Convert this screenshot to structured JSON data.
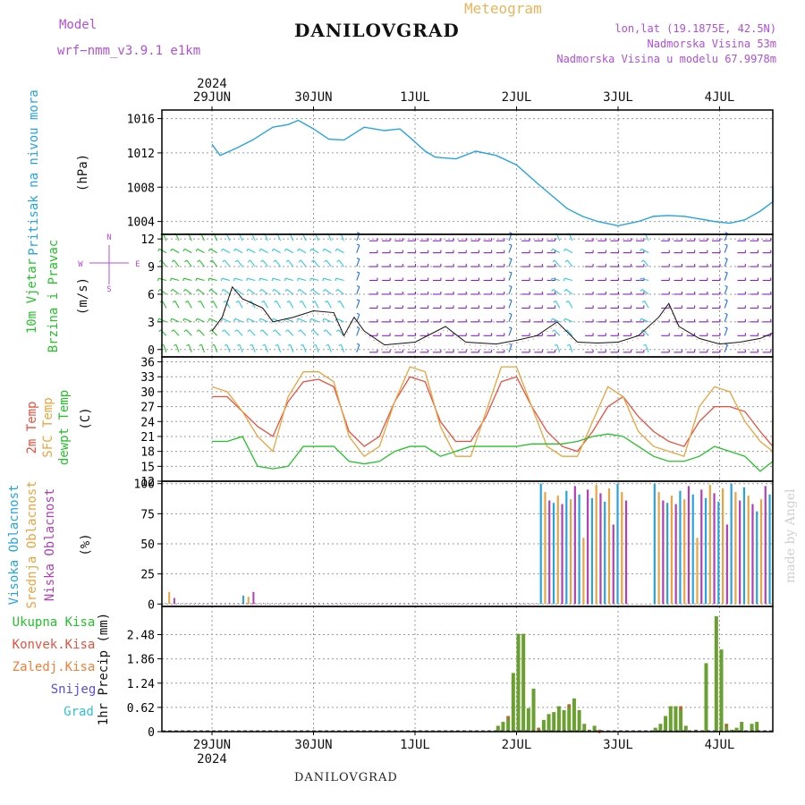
{
  "header": {
    "model_label": "Model",
    "model_value": "wrf−nmm_v3.9.1  e1km",
    "title": "DANILOVGRAD",
    "meteogram_label": "Meteogram",
    "lonlat": "lon,lat (19.1875E, 42.5N)",
    "elevation": "Nadmorska Visina 53m",
    "model_elevation": "Nadmorska Visina u modelu 67.9978m",
    "footer_title": "DANILOVGRAD",
    "credit": "made by Angel",
    "year": "2024"
  },
  "axis_dates": [
    "29JUN",
    "30JUN",
    "1JUL",
    "2JUL",
    "3JUL",
    "4JUL"
  ],
  "colors": {
    "pressure": "#27a4e0",
    "temp2m": "#e8503f",
    "sfc_temp": "#e8a53f",
    "dewpoint": "#25c22b",
    "high_cloud": "#27a4e0",
    "mid_cloud": "#e8a53f",
    "low_cloud": "#b03fb8",
    "total_precip": "#6aa030",
    "conv_precip": "#e24a3a",
    "frozen": "#f07f3a",
    "snow": "#5a4de0",
    "grad": "#2fc0d8",
    "wind_strong": "#8a1fc8",
    "wind_mid": "#1f6fe0",
    "wind_light": "#2fc8e0"
  },
  "chart_data": [
    {
      "type": "line",
      "panel": "pressure",
      "ylabel_lines": [
        "Pritisak na nivou mora",
        "(hPa)"
      ],
      "ylim": [
        1002.5,
        1017
      ],
      "yticks": [
        1004,
        1008,
        1012,
        1016
      ],
      "x_days": [
        0.0,
        0.08,
        0.25,
        0.4,
        0.6,
        0.75,
        0.85,
        1.0,
        1.15,
        1.3,
        1.5,
        1.7,
        1.85,
        1.95,
        2.1,
        2.2,
        2.4,
        2.6,
        2.8,
        3.0,
        3.2,
        3.35,
        3.5,
        3.65,
        3.8,
        4.0,
        4.2,
        4.35,
        4.5,
        4.65,
        4.8,
        4.95,
        5.1,
        5.25,
        5.4,
        5.6,
        5.75,
        5.92
      ],
      "series": [
        {
          "name": "Pritisak na nivou mora",
          "values": [
            1013.0,
            1011.7,
            1012.6,
            1013.5,
            1015.0,
            1015.3,
            1015.8,
            1014.8,
            1013.6,
            1013.5,
            1015.0,
            1014.6,
            1014.8,
            1013.8,
            1012.2,
            1011.5,
            1011.3,
            1012.2,
            1011.7,
            1010.6,
            1008.5,
            1007.0,
            1005.5,
            1004.6,
            1004.0,
            1003.5,
            1004.0,
            1004.6,
            1004.7,
            1004.6,
            1004.3,
            1004.0,
            1003.8,
            1004.2,
            1005.2,
            1006.3,
            1007.2,
            1008.2
          ]
        }
      ]
    },
    {
      "type": "line",
      "panel": "wind",
      "ylabel_lines": [
        "10m Vjetar",
        "Brzina i Pravac",
        "(m/s)"
      ],
      "compass": [
        "N",
        "W",
        "E",
        "S"
      ],
      "ylim": [
        -0.8,
        12.5
      ],
      "yticks": [
        0,
        3,
        6,
        9,
        12
      ],
      "x_days": [
        0.0,
        0.1,
        0.2,
        0.3,
        0.4,
        0.5,
        0.6,
        0.8,
        1.0,
        1.2,
        1.3,
        1.4,
        1.5,
        1.7,
        2.0,
        2.3,
        2.5,
        2.8,
        3.0,
        3.2,
        3.4,
        3.6,
        3.8,
        4.0,
        4.2,
        4.4,
        4.5,
        4.6,
        4.8,
        5.0,
        5.2,
        5.4,
        5.6,
        5.8,
        5.92
      ],
      "series": [
        {
          "name": "10m Vjetar",
          "values": [
            2.0,
            3.5,
            6.8,
            5.5,
            5.0,
            4.5,
            3.0,
            3.5,
            4.2,
            4.0,
            1.5,
            3.5,
            2.0,
            0.5,
            0.8,
            2.5,
            0.8,
            0.6,
            1.0,
            1.5,
            3.0,
            0.8,
            0.7,
            0.8,
            1.5,
            3.5,
            5.0,
            2.5,
            1.2,
            0.6,
            0.8,
            1.2,
            1.8,
            1.5,
            1.0
          ]
        }
      ]
    },
    {
      "type": "line",
      "panel": "temperature",
      "ylabel_lines": [
        "2m Temp",
        "SFC Temp",
        "dewpt Temp",
        "(C)"
      ],
      "ylim": [
        12,
        37
      ],
      "yticks": [
        12,
        15,
        18,
        21,
        24,
        27,
        30,
        33,
        36
      ],
      "x_days": [
        0.0,
        0.15,
        0.3,
        0.45,
        0.6,
        0.75,
        0.9,
        1.05,
        1.2,
        1.35,
        1.5,
        1.65,
        1.8,
        1.95,
        2.1,
        2.25,
        2.4,
        2.55,
        2.7,
        2.85,
        3.0,
        3.15,
        3.3,
        3.45,
        3.6,
        3.75,
        3.9,
        4.05,
        4.2,
        4.35,
        4.5,
        4.65,
        4.8,
        4.95,
        5.1,
        5.25,
        5.4,
        5.55,
        5.7,
        5.85,
        5.92
      ],
      "series": [
        {
          "name": "2m Temp",
          "values": [
            29,
            29,
            26,
            23,
            21,
            28,
            32,
            32.5,
            31,
            22,
            19,
            21,
            28,
            33,
            32,
            24,
            20,
            20,
            25,
            32,
            33,
            27,
            22,
            19,
            18,
            22,
            27,
            29,
            25,
            22,
            20,
            19,
            24,
            27,
            27,
            26,
            22,
            19,
            20,
            24,
            25
          ]
        },
        {
          "name": "SFC Temp",
          "values": [
            31,
            30,
            26,
            21,
            18,
            29,
            34,
            34,
            32,
            21,
            17,
            19,
            28,
            35,
            34,
            23,
            17,
            17,
            26,
            35,
            35,
            27,
            19,
            17,
            17,
            24,
            31,
            29,
            22,
            19,
            18,
            17,
            27,
            31,
            30,
            24,
            20,
            18,
            19,
            27,
            29
          ]
        },
        {
          "name": "dewpt Temp",
          "values": [
            20,
            20,
            21,
            15,
            14.5,
            15,
            19,
            19,
            19,
            16,
            15.5,
            16,
            18,
            19,
            19,
            17,
            18,
            19,
            19,
            19,
            19,
            19.5,
            19.5,
            19.5,
            20,
            21,
            21.5,
            21,
            19,
            17,
            16,
            16,
            17,
            19,
            18,
            17,
            14,
            16,
            17,
            18,
            19
          ]
        }
      ]
    },
    {
      "type": "bar",
      "panel": "clouds",
      "ylabel_lines": [
        "Visoka Oblacnost",
        "Srednja Oblacnost",
        "Niska Oblacnost",
        "(%)"
      ],
      "ylim": [
        -2,
        102
      ],
      "yticks": [
        0,
        25,
        50,
        75,
        100
      ],
      "cloudy_days": [
        [
          3.23,
          4.1
        ],
        [
          4.35,
          5.92
        ]
      ],
      "sparse": [
        {
          "day": 0.12,
          "value": 10
        },
        {
          "day": 0.17,
          "value": 5
        },
        {
          "day": 0.85,
          "value": 7
        },
        {
          "day": 0.9,
          "value": 6
        },
        {
          "day": 0.95,
          "value": 10
        }
      ],
      "series": [
        {
          "name": "Visoka Oblacnost"
        },
        {
          "name": "Srednja Oblacnost"
        },
        {
          "name": "Niska Oblacnost"
        }
      ]
    },
    {
      "type": "bar",
      "panel": "precipitation",
      "ylabel_lines": [
        "1hr Precip (mm)"
      ],
      "legend": [
        "Ukupna Kisa",
        "Konvek.Kisa",
        "Zaledj.Kisa",
        "Snijeg",
        "Grad"
      ],
      "ylim": [
        0,
        3.2
      ],
      "yticks": [
        0,
        0.62,
        1.24,
        1.86,
        2.48
      ],
      "x_days": [
        3.35,
        3.4,
        3.45,
        3.5,
        3.55,
        3.6,
        3.65,
        3.7,
        3.75,
        3.8,
        3.85,
        3.9,
        3.95,
        4.0,
        4.05,
        4.1,
        4.15,
        4.2,
        4.25,
        4.3,
        4.35,
        4.9,
        4.95,
        5.0,
        5.05,
        5.1,
        5.15,
        5.2,
        5.3,
        5.4,
        5.5,
        5.55,
        5.6,
        5.65,
        5.7,
        5.75,
        5.85,
        5.9
      ],
      "series": [
        {
          "name": "Ukupna Kisa",
          "values": [
            0.15,
            0.25,
            0.4,
            1.5,
            2.5,
            2.5,
            0.6,
            1.1,
            0.1,
            0.3,
            0.45,
            0.5,
            0.65,
            0.55,
            0.7,
            0.85,
            0.55,
            0.2,
            0.05,
            0.15,
            0.05,
            0.1,
            0.2,
            0.4,
            0.65,
            0.65,
            0.65,
            0.15,
            0.05,
            1.75,
            2.95,
            2.1,
            0.2,
            0.05,
            0.1,
            0.25,
            0.2,
            0.25
          ]
        }
      ]
    }
  ]
}
